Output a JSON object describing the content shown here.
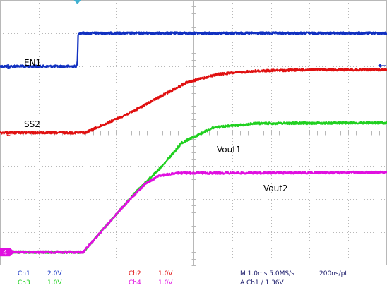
{
  "chart_data": {
    "type": "line",
    "grid": true,
    "grid_divisions": {
      "x": 10,
      "y": 8
    },
    "time_per_division_ms": 1.0,
    "x_range_ms": [
      -2.0,
      8.0
    ],
    "traces": [
      {
        "id": "ch1",
        "label": "EN1",
        "marker": "1",
        "color": "#1030c0",
        "volts_per_div": 2.0,
        "ground_div": 2.0,
        "points": [
          [
            -2.0,
            0.0
          ],
          [
            -0.02,
            0.0
          ],
          [
            0.0,
            0.28
          ],
          [
            0.02,
            2.0
          ],
          [
            8.0,
            2.0
          ]
        ]
      },
      {
        "id": "ch2",
        "label": "SS2",
        "marker": "2",
        "color": "#e01010",
        "volts_per_div": 1.0,
        "ground_div": 0.0,
        "points": [
          [
            -2.0,
            0.0
          ],
          [
            0.2,
            0.0
          ],
          [
            0.6,
            0.2
          ],
          [
            1.4,
            0.62
          ],
          [
            2.0,
            1.0
          ],
          [
            2.8,
            1.5
          ],
          [
            3.6,
            1.76
          ],
          [
            4.6,
            1.86
          ],
          [
            6.0,
            1.9
          ],
          [
            8.0,
            1.9
          ]
        ]
      },
      {
        "id": "ch3",
        "label": "Vout1",
        "color": "#20d020",
        "volts_per_div": 1.0,
        "ground_div": -3.6,
        "points": [
          [
            -2.0,
            0.0
          ],
          [
            0.15,
            0.0
          ],
          [
            1.2,
            1.4
          ],
          [
            1.5,
            1.8
          ],
          [
            2.2,
            2.6
          ],
          [
            2.7,
            3.3
          ],
          [
            3.5,
            3.75
          ],
          [
            4.6,
            3.88
          ],
          [
            8.0,
            3.9
          ]
        ]
      },
      {
        "id": "ch4",
        "label": "Vout2",
        "marker": "4",
        "color": "#e010e0",
        "volts_per_div": 1.0,
        "ground_div": -3.6,
        "points": [
          [
            -2.0,
            0.0
          ],
          [
            0.15,
            0.0
          ],
          [
            1.2,
            1.4
          ],
          [
            1.75,
            2.05
          ],
          [
            2.1,
            2.3
          ],
          [
            2.6,
            2.38
          ],
          [
            8.0,
            2.4
          ]
        ]
      }
    ],
    "trigger_marker_ms": 0.0,
    "trigger_level_arrow_div": 2.02
  },
  "readout": {
    "ch1_name": "Ch1",
    "ch1_scale": "2.0V",
    "ch2_name": "Ch2",
    "ch2_scale": "1.0V",
    "ch3_name": "Ch3",
    "ch3_scale": "1.0V",
    "ch4_name": "Ch4",
    "ch4_scale": "1.0V",
    "timebase": "M 1.0ms 5.0MS/s",
    "record": "200ns/pt",
    "trigger": "A  Ch1  ∕  1.36V"
  },
  "colors": {
    "ch1": "#1030c0",
    "ch2": "#e01010",
    "ch3": "#20d020",
    "ch4": "#e010e0",
    "grid": "#b8b8b8"
  }
}
